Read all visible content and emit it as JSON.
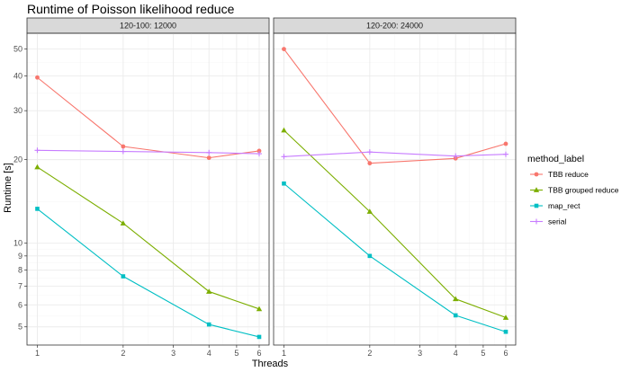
{
  "chart_data": {
    "type": "line",
    "title": "Runtime of Poisson likelihood reduce",
    "xlabel": "Threads",
    "ylabel": "Runtime [s]",
    "x_scale": "log",
    "y_scale": "log",
    "xlim": [
      0.92,
      6.5
    ],
    "ylim": [
      4.3,
      57
    ],
    "x_ticks": [
      1,
      2,
      3,
      4,
      5,
      6
    ],
    "x_tick_labels": [
      "1",
      "2",
      "3",
      "4",
      "5",
      "6"
    ],
    "y_ticks": [
      5,
      6,
      7,
      8,
      9,
      10,
      20,
      30,
      40,
      50
    ],
    "y_tick_labels": [
      "5",
      "6",
      "7",
      "8",
      "9",
      "10",
      "20",
      "30",
      "40",
      "50"
    ],
    "grid": true,
    "legend": {
      "title": "method_label",
      "position": "right"
    },
    "panels": [
      {
        "label": "120-100: 12000",
        "x": [
          1,
          2,
          4,
          6
        ],
        "series": [
          {
            "name": "TBB reduce",
            "values": [
              39.5,
              22.3,
              20.3,
              21.5
            ]
          },
          {
            "name": "TBB grouped reduce",
            "values": [
              18.8,
              11.8,
              6.7,
              5.8
            ]
          },
          {
            "name": "map_rect",
            "values": [
              13.3,
              7.6,
              5.1,
              4.6
            ]
          },
          {
            "name": "serial",
            "values": [
              21.6,
              21.4,
              21.2,
              21.0
            ]
          }
        ]
      },
      {
        "label": "120-200: 24000",
        "x": [
          1,
          2,
          4,
          6
        ],
        "series": [
          {
            "name": "TBB reduce",
            "values": [
              50.0,
              19.4,
              20.2,
              22.8
            ]
          },
          {
            "name": "TBB grouped reduce",
            "values": [
              25.5,
              13.0,
              6.3,
              5.4
            ]
          },
          {
            "name": "map_rect",
            "values": [
              16.4,
              9.0,
              5.5,
              4.8
            ]
          },
          {
            "name": "serial",
            "values": [
              20.5,
              21.3,
              20.6,
              20.9
            ]
          }
        ]
      }
    ],
    "series_styles": [
      {
        "name": "TBB reduce",
        "color": "#F8766D",
        "marker": "circle"
      },
      {
        "name": "TBB grouped reduce",
        "color": "#7CAE00",
        "marker": "triangle"
      },
      {
        "name": "map_rect",
        "color": "#00BFC4",
        "marker": "square"
      },
      {
        "name": "serial",
        "color": "#C77CFF",
        "marker": "plus"
      }
    ]
  }
}
